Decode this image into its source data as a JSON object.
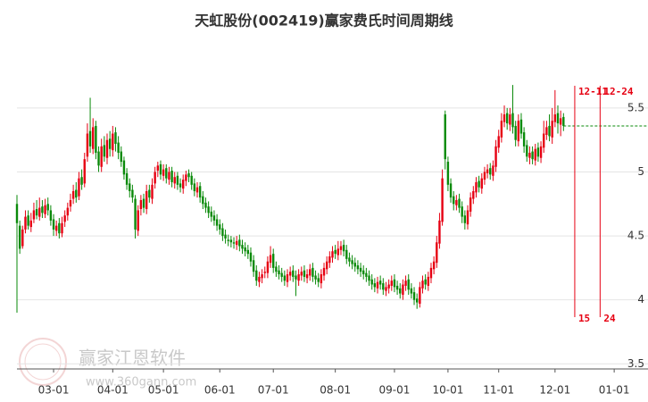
{
  "chart_data": {
    "type": "candlestick",
    "title": "天虹股份(002419)赢家费氏时间周期线",
    "watermark": {
      "brand": "赢家江恩软件",
      "url": "www.360gann.com"
    },
    "up_color": "#e60012",
    "down_color": "#0a8a0a",
    "x": [
      0,
      1,
      2,
      3,
      4,
      5,
      6,
      7,
      8,
      9,
      10,
      11,
      12,
      13,
      14,
      15,
      16,
      17,
      18,
      19,
      20,
      21,
      22,
      23,
      24,
      25,
      26,
      27,
      28,
      29,
      30,
      31,
      32,
      33,
      34,
      35,
      36,
      37,
      38,
      39,
      40,
      41,
      42,
      43,
      44,
      45,
      46,
      47,
      48,
      49,
      50,
      51,
      52,
      53,
      54,
      55,
      56,
      57,
      58,
      59,
      60,
      61,
      62,
      63,
      64,
      65,
      66,
      67,
      68,
      69,
      70,
      71,
      72,
      73,
      74,
      75,
      76,
      77,
      78,
      79,
      80,
      81,
      82,
      83,
      84,
      85,
      86,
      87,
      88,
      89,
      90,
      91,
      92,
      93,
      94,
      95,
      96,
      97,
      98,
      99,
      100,
      101,
      102,
      103,
      104,
      105,
      106,
      107,
      108,
      109,
      110,
      111,
      112,
      113,
      114,
      115,
      116,
      117,
      118,
      119,
      120,
      121,
      122,
      123,
      124,
      125,
      126,
      127,
      128,
      129,
      130,
      131,
      132,
      133,
      134,
      135,
      136,
      137,
      138,
      139,
      140,
      141,
      142,
      143,
      144,
      145,
      146,
      147,
      148,
      149,
      150,
      151,
      152,
      153,
      154,
      155,
      156,
      157,
      158,
      159,
      160,
      161,
      162,
      163,
      164,
      165,
      166,
      167,
      168,
      169,
      170,
      171,
      172,
      173,
      174,
      175,
      176,
      177,
      178,
      179,
      180,
      181,
      182,
      183,
      184,
      185,
      186,
      187,
      188,
      189,
      190,
      191,
      192,
      193,
      194
    ],
    "open": [
      4.75,
      4.58,
      4.42,
      4.55,
      4.66,
      4.57,
      4.63,
      4.71,
      4.65,
      4.73,
      4.67,
      4.75,
      4.7,
      4.63,
      4.54,
      4.6,
      4.52,
      4.61,
      4.66,
      4.73,
      4.79,
      4.86,
      4.81,
      4.96,
      4.91,
      5.12,
      5.32,
      5.18,
      5.36,
      5.16,
      5.04,
      5.21,
      5.11,
      5.26,
      5.17,
      5.31,
      5.23,
      5.16,
      5.09,
      4.99,
      4.91,
      4.86,
      4.79,
      4.54,
      4.71,
      4.79,
      4.71,
      4.86,
      4.79,
      4.91,
      5.01,
      5.06,
      4.97,
      5.03,
      4.94,
      5.01,
      4.91,
      4.97,
      4.91,
      4.87,
      4.93,
      4.99,
      4.97,
      4.91,
      4.84,
      4.89,
      4.81,
      4.76,
      4.73,
      4.69,
      4.66,
      4.63,
      4.59,
      4.56,
      4.51,
      4.47,
      4.47,
      4.45,
      4.43,
      4.47,
      4.43,
      4.41,
      4.39,
      4.37,
      4.31,
      4.23,
      4.14,
      4.17,
      4.21,
      4.21,
      4.29,
      4.36,
      4.26,
      4.23,
      4.21,
      4.19,
      4.14,
      4.19,
      4.23,
      4.19,
      4.15,
      4.19,
      4.23,
      4.17,
      4.19,
      4.25,
      4.19,
      4.17,
      4.13,
      4.19,
      4.24,
      4.29,
      4.33,
      4.39,
      4.35,
      4.39,
      4.43,
      4.39,
      4.33,
      4.31,
      4.29,
      4.27,
      4.25,
      4.23,
      4.21,
      4.19,
      4.16,
      4.13,
      4.09,
      4.15,
      4.13,
      4.07,
      4.09,
      4.11,
      4.16,
      4.11,
      4.09,
      4.04,
      4.11,
      4.16,
      4.09,
      4.06,
      4.01,
      3.97,
      4.09,
      4.16,
      4.11,
      4.17,
      4.24,
      4.29,
      4.44,
      4.61,
      5.45,
      5.08,
      4.91,
      4.81,
      4.74,
      4.79,
      4.73,
      4.66,
      4.59,
      4.69,
      4.79,
      4.84,
      4.93,
      4.87,
      4.94,
      4.99,
      5.03,
      4.97,
      5.04,
      5.19,
      5.27,
      5.39,
      5.46,
      5.37,
      5.46,
      5.36,
      5.24,
      5.41,
      5.31,
      5.21,
      5.11,
      5.16,
      5.09,
      5.19,
      5.11,
      5.19,
      5.29,
      5.36,
      5.27,
      5.39,
      5.46,
      5.37,
      5.43
    ],
    "high": [
      4.82,
      4.62,
      4.58,
      4.7,
      4.7,
      4.68,
      4.76,
      4.78,
      4.8,
      4.78,
      4.79,
      4.8,
      4.74,
      4.67,
      4.62,
      4.64,
      4.65,
      4.7,
      4.76,
      4.83,
      4.9,
      4.92,
      5.0,
      5.02,
      5.15,
      5.38,
      5.58,
      5.42,
      5.4,
      5.2,
      5.26,
      5.28,
      5.3,
      5.32,
      5.36,
      5.35,
      5.28,
      5.2,
      5.12,
      5.03,
      4.95,
      4.9,
      4.82,
      4.74,
      4.82,
      4.83,
      4.9,
      4.9,
      4.95,
      5.04,
      5.08,
      5.09,
      5.06,
      5.06,
      5.04,
      5.04,
      5.0,
      5.0,
      4.95,
      4.98,
      5.01,
      5.02,
      5.0,
      4.95,
      4.92,
      4.92,
      4.85,
      4.8,
      4.77,
      4.73,
      4.7,
      4.67,
      4.63,
      4.6,
      4.55,
      4.51,
      4.5,
      4.49,
      4.5,
      4.51,
      4.47,
      4.45,
      4.43,
      4.41,
      4.35,
      4.27,
      4.22,
      4.24,
      4.26,
      4.34,
      4.42,
      4.4,
      4.3,
      4.27,
      4.25,
      4.23,
      4.24,
      4.26,
      4.27,
      4.23,
      4.24,
      4.26,
      4.27,
      4.24,
      4.28,
      4.29,
      4.23,
      4.21,
      4.24,
      4.29,
      4.34,
      4.38,
      4.42,
      4.43,
      4.46,
      4.46,
      4.47,
      4.43,
      4.37,
      4.35,
      4.33,
      4.31,
      4.29,
      4.27,
      4.25,
      4.23,
      4.2,
      4.17,
      4.18,
      4.19,
      4.17,
      4.14,
      4.16,
      4.19,
      4.2,
      4.15,
      4.13,
      4.16,
      4.19,
      4.2,
      4.13,
      4.1,
      4.05,
      4.14,
      4.19,
      4.2,
      4.22,
      4.29,
      4.34,
      4.5,
      4.68,
      5.02,
      5.48,
      5.12,
      4.95,
      4.85,
      4.82,
      4.83,
      4.77,
      4.7,
      4.74,
      4.84,
      4.89,
      4.96,
      4.97,
      4.99,
      5.04,
      5.06,
      5.07,
      5.09,
      5.25,
      5.33,
      5.46,
      5.52,
      5.5,
      5.5,
      5.68,
      5.4,
      5.45,
      5.46,
      5.35,
      5.25,
      5.2,
      5.2,
      5.22,
      5.23,
      5.24,
      5.4,
      5.4,
      5.45,
      5.5,
      5.64,
      5.52,
      5.48,
      5.46
    ],
    "low": [
      3.9,
      4.36,
      4.4,
      4.52,
      4.55,
      4.53,
      4.6,
      4.63,
      4.62,
      4.64,
      4.64,
      4.66,
      4.58,
      4.5,
      4.5,
      4.48,
      4.49,
      4.57,
      4.62,
      4.69,
      4.75,
      4.76,
      4.78,
      4.86,
      4.88,
      5.08,
      5.15,
      5.14,
      5.1,
      5.0,
      5.0,
      5.08,
      5.06,
      5.12,
      5.12,
      5.16,
      5.1,
      5.04,
      4.94,
      4.86,
      4.8,
      4.76,
      4.48,
      4.5,
      4.66,
      4.68,
      4.67,
      4.76,
      4.75,
      4.87,
      4.96,
      4.94,
      4.93,
      4.91,
      4.9,
      4.88,
      4.87,
      4.86,
      4.84,
      4.83,
      4.89,
      4.92,
      4.86,
      4.81,
      4.8,
      4.76,
      4.71,
      4.68,
      4.64,
      4.61,
      4.58,
      4.54,
      4.51,
      4.46,
      4.44,
      4.42,
      4.41,
      4.4,
      4.39,
      4.38,
      4.36,
      4.34,
      4.32,
      4.26,
      4.18,
      4.11,
      4.1,
      4.13,
      4.17,
      4.17,
      4.25,
      4.21,
      4.18,
      4.16,
      4.14,
      4.11,
      4.1,
      4.15,
      4.14,
      4.03,
      4.11,
      4.15,
      4.14,
      4.13,
      4.15,
      4.14,
      4.12,
      4.1,
      4.09,
      4.15,
      4.2,
      4.25,
      4.29,
      4.32,
      4.31,
      4.35,
      4.34,
      4.28,
      4.26,
      4.24,
      4.22,
      4.2,
      4.18,
      4.16,
      4.14,
      4.11,
      4.08,
      4.06,
      4.05,
      4.08,
      4.04,
      4.03,
      4.05,
      4.07,
      4.06,
      4.04,
      4.01,
      4.0,
      4.07,
      4.04,
      4.01,
      3.96,
      3.93,
      3.94,
      4.05,
      4.08,
      4.07,
      4.13,
      4.2,
      4.25,
      4.4,
      4.58,
      5.02,
      4.85,
      4.76,
      4.7,
      4.7,
      4.68,
      4.6,
      4.55,
      4.55,
      4.65,
      4.75,
      4.8,
      4.84,
      4.83,
      4.9,
      4.95,
      4.94,
      4.93,
      5.0,
      5.15,
      5.23,
      5.35,
      5.33,
      5.32,
      5.3,
      5.2,
      5.2,
      5.26,
      5.15,
      5.08,
      5.06,
      5.06,
      5.05,
      5.08,
      5.07,
      5.15,
      5.25,
      5.24,
      5.22,
      5.35,
      5.3,
      5.28,
      5.32
    ],
    "close": [
      4.6,
      4.4,
      4.55,
      4.65,
      4.58,
      4.62,
      4.7,
      4.66,
      4.72,
      4.68,
      4.74,
      4.7,
      4.62,
      4.55,
      4.58,
      4.52,
      4.6,
      4.66,
      4.72,
      4.78,
      4.85,
      4.8,
      4.95,
      4.9,
      5.1,
      5.3,
      5.2,
      5.35,
      5.15,
      5.05,
      5.2,
      5.12,
      5.25,
      5.18,
      5.3,
      5.22,
      5.15,
      5.08,
      4.98,
      4.9,
      4.85,
      4.8,
      4.55,
      4.7,
      4.78,
      4.72,
      4.85,
      4.8,
      4.9,
      5.0,
      5.05,
      4.98,
      5.02,
      4.95,
      5.0,
      4.92,
      4.96,
      4.9,
      4.88,
      4.94,
      4.98,
      4.96,
      4.9,
      4.85,
      4.88,
      4.8,
      4.75,
      4.72,
      4.68,
      4.65,
      4.62,
      4.58,
      4.55,
      4.5,
      4.48,
      4.46,
      4.45,
      4.44,
      4.46,
      4.42,
      4.4,
      4.38,
      4.36,
      4.3,
      4.22,
      4.15,
      4.18,
      4.2,
      4.22,
      4.3,
      4.35,
      4.25,
      4.22,
      4.2,
      4.18,
      4.15,
      4.2,
      4.22,
      4.18,
      4.16,
      4.2,
      4.22,
      4.18,
      4.2,
      4.24,
      4.18,
      4.16,
      4.14,
      4.2,
      4.25,
      4.3,
      4.34,
      4.38,
      4.36,
      4.4,
      4.42,
      4.38,
      4.32,
      4.3,
      4.28,
      4.26,
      4.24,
      4.22,
      4.2,
      4.18,
      4.15,
      4.12,
      4.1,
      4.14,
      4.12,
      4.08,
      4.1,
      4.12,
      4.15,
      4.1,
      4.08,
      4.05,
      4.12,
      4.15,
      4.08,
      4.05,
      4.0,
      3.98,
      4.1,
      4.15,
      4.12,
      4.18,
      4.25,
      4.3,
      4.45,
      4.62,
      4.95,
      5.1,
      4.9,
      4.8,
      4.75,
      4.78,
      4.72,
      4.65,
      4.6,
      4.7,
      4.8,
      4.85,
      4.92,
      4.88,
      4.95,
      5.0,
      5.02,
      4.98,
      5.05,
      5.2,
      5.28,
      5.4,
      5.45,
      5.38,
      5.45,
      5.35,
      5.25,
      5.4,
      5.3,
      5.2,
      5.12,
      5.15,
      5.1,
      5.18,
      5.12,
      5.2,
      5.3,
      5.35,
      5.28,
      5.4,
      5.45,
      5.38,
      5.42,
      5.36
    ],
    "xlim": [
      0,
      224
    ],
    "ylim": [
      3.46,
      6.1
    ],
    "xticks": [
      {
        "value": 13,
        "label": "03-01"
      },
      {
        "value": 34,
        "label": "04-01"
      },
      {
        "value": 52,
        "label": "05-01"
      },
      {
        "value": 72,
        "label": "06-01"
      },
      {
        "value": 91,
        "label": "07-01"
      },
      {
        "value": 113,
        "label": "08-01"
      },
      {
        "value": 134,
        "label": "09-01"
      },
      {
        "value": 153,
        "label": "10-01"
      },
      {
        "value": 171,
        "label": "11-01"
      },
      {
        "value": 191,
        "label": "12-01"
      },
      {
        "value": 212,
        "label": "01-01"
      }
    ],
    "yticks": [
      3.5,
      4,
      4.5,
      5,
      5.5
    ],
    "grid": true,
    "reference_line": {
      "value": 5.36,
      "color": "#0a8a0a"
    },
    "cycle_lines": [
      {
        "x": 198,
        "date": "12-11",
        "count": "15"
      },
      {
        "x": 207,
        "date": "12-24",
        "count": "24"
      }
    ],
    "cycle_color": "#e60012"
  }
}
